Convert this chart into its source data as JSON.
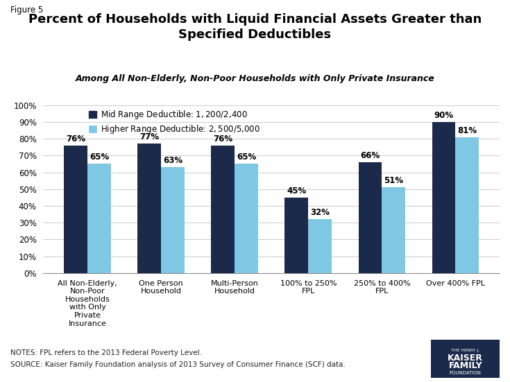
{
  "title_main": "Percent of Households with Liquid Financial Assets Greater than\nSpecified Deductibles",
  "title_sub": "Among All Non-Elderly, Non-Poor Households with Only Private Insurance",
  "figure_label": "Figure 5",
  "categories": [
    "All Non-Elderly,\nNon-Poor\nHouseholds\nwith Only\nPrivate\nInsurance",
    "One Person\nHousehold",
    "Multi-Person\nHousehold",
    "100% to 250%\nFPL",
    "250% to 400%\nFPL",
    "Over 400% FPL"
  ],
  "mid_range": [
    76,
    77,
    76,
    45,
    66,
    90
  ],
  "higher_range": [
    65,
    63,
    65,
    32,
    51,
    81
  ],
  "mid_color": "#1B2A4A",
  "higher_color": "#7EC8E3",
  "legend_mid": "Mid Range Deductible: $1,200/$2,400",
  "legend_higher": "Higher Range Deductible: $2,500/$5,000",
  "ylim": [
    0,
    100
  ],
  "yticks": [
    0,
    10,
    20,
    30,
    40,
    50,
    60,
    70,
    80,
    90,
    100
  ],
  "ytick_labels": [
    "0%",
    "10%",
    "20%",
    "30%",
    "40%",
    "50%",
    "60%",
    "70%",
    "80%",
    "90%",
    "100%"
  ],
  "notes_line1": "NOTES: FPL refers to the 2013 Federal Poverty Level.",
  "notes_line2": "SOURCE: Kaiser Family Foundation analysis of 2013 Survey of Consumer Finance (SCF) data.",
  "bg_color": "#FFFFFF",
  "bar_width": 0.32
}
